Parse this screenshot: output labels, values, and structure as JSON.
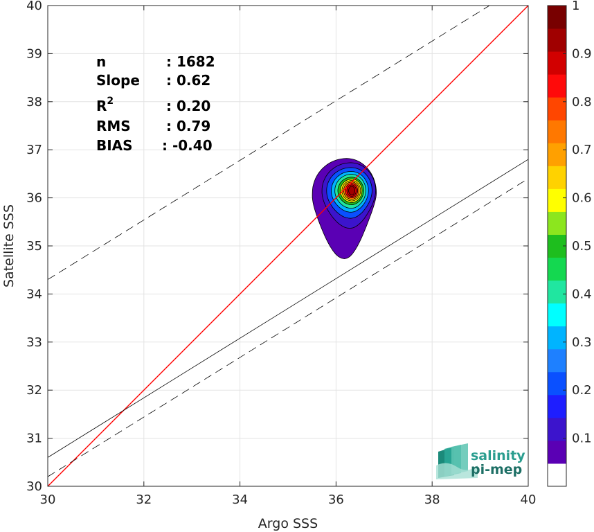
{
  "chart_data": {
    "type": "heatmap",
    "title": "",
    "xlabel": "Argo SSS",
    "ylabel": "Satellite SSS",
    "xlim": [
      30,
      40
    ],
    "ylim": [
      30,
      40
    ],
    "xticks": [
      "30",
      "32",
      "34",
      "36",
      "38",
      "40"
    ],
    "yticks": [
      "30",
      "31",
      "32",
      "33",
      "34",
      "35",
      "36",
      "37",
      "38",
      "39",
      "40"
    ],
    "grid": true,
    "colorbar": {
      "range": [
        0,
        1
      ],
      "ticks": [
        "0.1",
        "0.2",
        "0.3",
        "0.4",
        "0.5",
        "0.6",
        "0.7",
        "0.8",
        "0.9",
        "1"
      ],
      "colors": [
        "#ffffff",
        "#5a00b4",
        "#3c14cc",
        "#1e1eff",
        "#0a50ff",
        "#1e80ff",
        "#00b4ff",
        "#00ffff",
        "#20e6a0",
        "#14d850",
        "#1ebe1e",
        "#8ce61e",
        "#ffff00",
        "#ffd200",
        "#ffa000",
        "#ff7800",
        "#ff4600",
        "#ff0a0a",
        "#d20000",
        "#a00000",
        "#780000"
      ]
    },
    "density_center": {
      "x": 36.3,
      "y": 36.15
    },
    "lines": [
      {
        "name": "1:1",
        "slope": 1,
        "intercept": 0,
        "style": "solid",
        "color": "#ff0000"
      },
      {
        "name": "fit",
        "slope": 0.62,
        "intercept": 12.0,
        "style": "solid",
        "color": "#000000"
      },
      {
        "name": "fit+",
        "slope": 0.62,
        "intercept": 15.7,
        "style": "dashed",
        "color": "#000000"
      },
      {
        "name": "fit-",
        "slope": 0.62,
        "intercept": 11.6,
        "style": "dashed",
        "color": "#000000"
      }
    ],
    "stats": [
      {
        "label": "n",
        "value": ": 1682"
      },
      {
        "label": "Slope",
        "value": ": 0.62"
      },
      {
        "label": "R",
        "sup": "2",
        "value": ": 0.20"
      },
      {
        "label": "RMS",
        "value": ": 0.79"
      },
      {
        "label": "BIAS",
        "value": ": -0.40"
      }
    ]
  },
  "logo": {
    "line1": "salinity",
    "line2": "pi-mep"
  }
}
